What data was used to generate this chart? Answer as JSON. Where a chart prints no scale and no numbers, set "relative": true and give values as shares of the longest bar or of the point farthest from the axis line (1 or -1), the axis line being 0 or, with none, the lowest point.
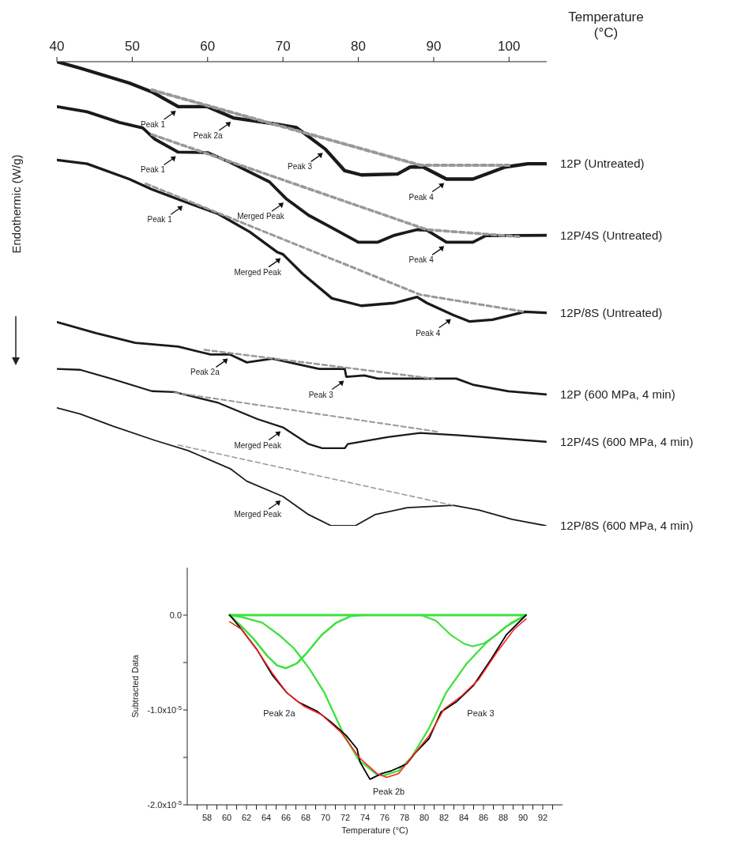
{
  "chart_data": [
    {
      "type": "line",
      "xlabel": "Temperature (°C)",
      "ylabel": "Endothermic (W/g)",
      "relative": true,
      "xlim": [
        40,
        105
      ],
      "xticks": [
        40,
        50,
        60,
        70,
        80,
        90,
        100
      ],
      "line_style": "solid",
      "series": [
        {
          "name": "12P (Untreated)",
          "color": "#1a1a1a",
          "x": [
            40,
            43.1,
            49.6,
            52.6,
            56.1,
            60,
            63.4,
            69.2,
            71.8,
            75.6,
            78.2,
            80.4,
            85.2,
            86.9,
            88.6,
            91.7,
            95.2,
            99.5,
            102.5,
            104.9
          ],
          "values": [
            1.0,
            0.986,
            0.954,
            0.935,
            0.903,
            0.903,
            0.879,
            0.865,
            0.858,
            0.812,
            0.765,
            0.756,
            0.758,
            0.773,
            0.773,
            0.747,
            0.747,
            0.773,
            0.78,
            0.78
          ]
        },
        {
          "color": "#999999",
          "line_style": "dashed",
          "x": [
            52.6,
            88.2,
            100
          ],
          "values": [
            0.939,
            0.777,
            0.777
          ]
        },
        {
          "name": "12P/4S (Untreated)",
          "color": "#1a1a1a",
          "x": [
            40,
            44,
            48.3,
            51.4,
            53,
            56.1,
            60,
            63,
            68.2,
            70.4,
            73.4,
            76.5,
            80,
            82.6,
            84.8,
            87.8,
            89.1,
            91.7,
            95.2,
            96.9,
            104.9
          ],
          "values": [
            0.903,
            0.892,
            0.869,
            0.857,
            0.833,
            0.805,
            0.804,
            0.783,
            0.741,
            0.705,
            0.669,
            0.642,
            0.611,
            0.611,
            0.626,
            0.638,
            0.637,
            0.611,
            0.611,
            0.625,
            0.626
          ]
        },
        {
          "color": "#999999",
          "line_style": "dashed",
          "x": [
            52.6,
            89.1,
            101.3
          ],
          "values": [
            0.843,
            0.638,
            0.623
          ]
        },
        {
          "name": "12P/8S (Untreated)",
          "color": "#1a1a1a",
          "x": [
            40,
            44,
            49.6,
            52.6,
            57,
            61.4,
            65.6,
            69.2,
            70,
            72.6,
            76.5,
            80.4,
            84.8,
            87.8,
            89.1,
            92.6,
            94.8,
            97.8,
            102.1,
            104.9
          ],
          "values": [
            0.788,
            0.78,
            0.747,
            0.725,
            0.698,
            0.672,
            0.633,
            0.59,
            0.585,
            0.543,
            0.49,
            0.474,
            0.48,
            0.493,
            0.48,
            0.454,
            0.44,
            0.444,
            0.461,
            0.459
          ]
        },
        {
          "color": "#999999",
          "line_style": "dashed",
          "x": [
            51.8,
            88.2,
            102.1
          ],
          "values": [
            0.737,
            0.498,
            0.461
          ]
        },
        {
          "name": "12P (600 MPa, 4 min)",
          "color": "#1a1a1a",
          "x": [
            40,
            45.2,
            50.4,
            56.1,
            60.4,
            63,
            65.2,
            68.6,
            74.8,
            78.2,
            78.4,
            80.8,
            82.6,
            93,
            95.2,
            99.9,
            104.9
          ],
          "values": [
            0.439,
            0.415,
            0.394,
            0.386,
            0.369,
            0.369,
            0.352,
            0.36,
            0.338,
            0.338,
            0.321,
            0.324,
            0.317,
            0.317,
            0.304,
            0.29,
            0.283
          ]
        },
        {
          "color": "#999999",
          "line_style": "dashed",
          "x": [
            59.6,
            90
          ],
          "values": [
            0.379,
            0.317
          ]
        },
        {
          "name": "12P/4S (600 MPa, 4 min)",
          "color": "#1a1a1a",
          "x": [
            40,
            43.1,
            47.4,
            52.6,
            55.6,
            61.4,
            66.6,
            70,
            73.4,
            75.2,
            78.2,
            78.6,
            83.9,
            88.2,
            93.4,
            104.9
          ],
          "values": [
            0.338,
            0.336,
            0.316,
            0.29,
            0.288,
            0.265,
            0.23,
            0.212,
            0.176,
            0.167,
            0.167,
            0.176,
            0.191,
            0.2,
            0.195,
            0.181
          ]
        },
        {
          "color": "#999999",
          "line_style": "dashed",
          "x": [
            55.6,
            90.8
          ],
          "values": [
            0.287,
            0.202
          ]
        },
        {
          "name": "12P/8S (600 MPa, 4 min)",
          "color": "#1a1a1a",
          "x": [
            40,
            43.1,
            47.4,
            53,
            57.4,
            63,
            65.2,
            70,
            73.4,
            76.4,
            79.6,
            82.2,
            86.5,
            92.6,
            96,
            100.4,
            104.9
          ],
          "values": [
            0.254,
            0.241,
            0.215,
            0.184,
            0.162,
            0.123,
            0.096,
            0.063,
            0.024,
            0,
            0,
            0.024,
            0.039,
            0.044,
            0.034,
            0.014,
            0
          ]
        },
        {
          "color": "#999999",
          "line_style": "dashed",
          "x": [
            56.1,
            92.6
          ],
          "values": [
            0.174,
            0.044
          ]
        }
      ],
      "annotations": [
        {
          "text": "Peak 1",
          "x": 56.1,
          "y": 0.903
        },
        {
          "text": "Peak 2a",
          "x": 63.4,
          "y": 0.879
        },
        {
          "text": "Peak 3",
          "x": 75.6,
          "y": 0.812
        },
        {
          "text": "Peak 4",
          "x": 91.7,
          "y": 0.747
        },
        {
          "text": "Peak 1",
          "x": 56.1,
          "y": 0.805
        },
        {
          "text": "Merged Peak",
          "x": 70.4,
          "y": 0.705
        },
        {
          "text": "Peak 4",
          "x": 91.7,
          "y": 0.611
        },
        {
          "text": "Peak 1",
          "x": 57,
          "y": 0.698
        },
        {
          "text": "Merged Peak",
          "x": 70,
          "y": 0.585
        },
        {
          "text": "Peak 4",
          "x": 92.6,
          "y": 0.454
        },
        {
          "text": "Peak 2a",
          "x": 63,
          "y": 0.369
        },
        {
          "text": "Peak 3",
          "x": 78.4,
          "y": 0.321
        },
        {
          "text": "Merged Peak",
          "x": 70,
          "y": 0.212
        },
        {
          "text": "Merged Peak",
          "x": 70,
          "y": 0.063
        }
      ]
    },
    {
      "type": "line",
      "xlabel": "Temperature (°C)",
      "ylabel": "Subtracted Data",
      "xlim": [
        56,
        94
      ],
      "ylim": [
        -2e-05,
        5e-06
      ],
      "xticks": [
        {
          "value": 57,
          "label": null
        },
        58,
        {
          "value": 59,
          "label": null
        },
        60,
        {
          "value": 61,
          "label": null
        },
        62,
        {
          "value": 63,
          "label": null
        },
        64,
        {
          "value": 65,
          "label": null
        },
        66,
        {
          "value": 67,
          "label": null
        },
        68,
        {
          "value": 69,
          "label": null
        },
        70,
        {
          "value": 71,
          "label": null
        },
        72,
        {
          "value": 73,
          "label": null
        },
        74,
        {
          "value": 75,
          "label": null
        },
        76,
        {
          "value": 77,
          "label": null
        },
        78,
        {
          "value": 79,
          "label": null
        },
        80,
        {
          "value": 81,
          "label": null
        },
        82,
        {
          "value": 83,
          "label": null
        },
        84,
        {
          "value": 85,
          "label": null
        },
        86,
        {
          "value": 87,
          "label": null
        },
        88,
        {
          "value": 89,
          "label": null
        },
        90,
        {
          "value": 91,
          "label": null
        },
        92,
        {
          "value": 93,
          "label": null
        }
      ],
      "yticks": [
        {
          "value": -2e-05,
          "label": "-2.0x10$^{-5}$"
        },
        {
          "value": -1.5e-05,
          "label": null
        },
        {
          "value": -1e-05,
          "label": "-1.0x10$^{-5}$"
        },
        {
          "value": -5e-06,
          "label": null
        },
        {
          "value": 0,
          "label": "0.0"
        }
      ],
      "series": [
        {
          "color": "#3ee03e",
          "x": [
            60.3,
            90.3
          ],
          "values": [
            0,
            0
          ]
        },
        {
          "color": "#3ee03e",
          "x": [
            60.3,
            61.5,
            62.8,
            64.1,
            65.1,
            66,
            67.1,
            68.1,
            69.6,
            71.1,
            72.6,
            73.7
          ],
          "values": [
            0,
            -1.2e-06,
            -2.6e-06,
            -4.3e-06,
            -5.3e-06,
            -5.6e-06,
            -5.1e-06,
            -4e-06,
            -2.1e-06,
            -8e-07,
            -1e-07,
            0
          ]
        },
        {
          "color": "#3ee03e",
          "x": [
            60.3,
            61.5,
            63.6,
            65.3,
            66.8,
            68.4,
            69.9,
            71.9,
            73.4,
            75.2,
            75.9,
            77.4,
            78.7,
            80.5,
            82.2,
            84.3,
            86.3,
            88.3,
            90.3
          ],
          "values": [
            0,
            -2e-07,
            -8e-07,
            -2.1e-06,
            -3.5e-06,
            -5.7e-06,
            -8.2e-06,
            -1.27e-05,
            -1.53e-05,
            -1.68e-05,
            -1.69e-05,
            -1.64e-05,
            -1.5e-05,
            -1.19e-05,
            -8.2e-06,
            -5.1e-06,
            -2.9e-06,
            -1.2e-06,
            0
          ]
        },
        {
          "color": "#3ee03e",
          "x": [
            79.7,
            81.2,
            82.7,
            84,
            84.9,
            86,
            87.3,
            88.8,
            90.3
          ],
          "values": [
            0,
            -6e-07,
            -2.1e-06,
            -3e-06,
            -3.3e-06,
            -3e-06,
            -2.1e-06,
            -8e-07,
            0
          ]
        },
        {
          "color": "#000000",
          "x": [
            60.3,
            61.5,
            63.1,
            64.6,
            66.1,
            67.3,
            69.1,
            70.6,
            72.1,
            73.2,
            73.5,
            74.5,
            75.7,
            76.7,
            78.2,
            79.2,
            80.5,
            81.7,
            83.3,
            85,
            86.8,
            88.3,
            90.3
          ],
          "values": [
            0,
            -1.5e-06,
            -3.7e-06,
            -6.3e-06,
            -8.2e-06,
            -9.2e-06,
            -1.01e-05,
            -1.13e-05,
            -1.27e-05,
            -1.41e-05,
            -1.55e-05,
            -1.73e-05,
            -1.67e-05,
            -1.64e-05,
            -1.57e-05,
            -1.44e-05,
            -1.3e-05,
            -1.02e-05,
            -9.1e-06,
            -7.4e-06,
            -4.6e-06,
            -2.1e-06,
            0
          ]
        },
        {
          "color": "#ff2020",
          "x": [
            60.3,
            61.5,
            63.1,
            64.6,
            66.1,
            67.8,
            69.6,
            71.6,
            73.4,
            75.2,
            76.2,
            77.4,
            78.7,
            80.5,
            82,
            83.8,
            85.5,
            87.3,
            89.1,
            90.3
          ],
          "values": [
            -7e-07,
            -1.5e-06,
            -3.7e-06,
            -6.1e-06,
            -8.2e-06,
            -9.6e-06,
            -1.05e-05,
            -1.24e-05,
            -1.5e-05,
            -1.67e-05,
            -1.71e-05,
            -1.67e-05,
            -1.5e-05,
            -1.27e-05,
            -9.9e-06,
            -8.5e-06,
            -6.8e-06,
            -4e-06,
            -1.5e-06,
            -4e-07
          ]
        }
      ],
      "annotations": [
        "Peak 2a",
        "Peak 2b",
        "Peak 3"
      ]
    }
  ]
}
